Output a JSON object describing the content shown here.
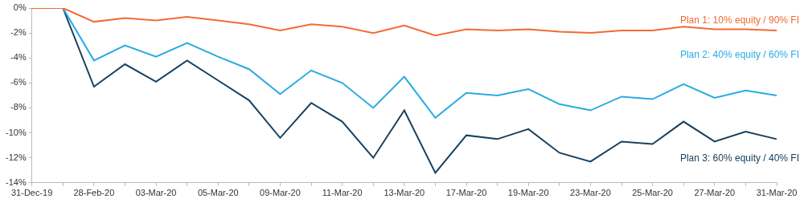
{
  "chart_data": {
    "type": "line",
    "categories": [
      "31-Dec-19",
      null,
      "28-Feb-20",
      null,
      "03-Mar-20",
      null,
      "05-Mar-20",
      null,
      "09-Mar-20",
      null,
      "11-Mar-20",
      null,
      "13-Mar-20",
      null,
      "17-Mar-20",
      null,
      "19-Mar-20",
      null,
      "23-Mar-20",
      null,
      "25-Mar-20",
      null,
      "27-Mar-20",
      null,
      "31-Mar-20"
    ],
    "series": [
      {
        "name": "Plan 1: 10% equity / 90% FI",
        "color": "#f26b35",
        "values": [
          0,
          0,
          -1.1,
          -0.8,
          -1.0,
          -0.7,
          -1.0,
          -1.3,
          -1.8,
          -1.3,
          -1.5,
          -2.0,
          -1.4,
          -2.2,
          -1.7,
          -1.8,
          -1.7,
          -1.9,
          -2.0,
          -1.8,
          -1.8,
          -1.5,
          -1.7,
          -1.7,
          -1.8
        ]
      },
      {
        "name": "Plan 2: 40% equity / 60% FI",
        "color": "#29abe2",
        "values": [
          0,
          0,
          -4.2,
          -3.0,
          -3.9,
          -2.8,
          -3.9,
          -4.9,
          -6.9,
          -5.0,
          -6.0,
          -8.0,
          -5.5,
          -8.8,
          -6.8,
          -7.0,
          -6.5,
          -7.7,
          -8.2,
          -7.1,
          -7.3,
          -6.1,
          -7.2,
          -6.6,
          -7.0
        ]
      },
      {
        "name": "Plan 3: 60% equity / 40% FI",
        "color": "#17415f",
        "values": [
          0,
          0,
          -6.3,
          -4.5,
          -5.9,
          -4.2,
          -5.8,
          -7.4,
          -10.4,
          -7.6,
          -9.1,
          -12.0,
          -8.2,
          -13.2,
          -10.2,
          -10.5,
          -9.7,
          -11.6,
          -12.3,
          -10.7,
          -10.9,
          -9.1,
          -10.7,
          -9.9,
          -10.5
        ]
      }
    ],
    "ylim": [
      -14,
      0
    ],
    "yticks": [
      {
        "value": 0,
        "label": "0%"
      },
      {
        "value": -2,
        "label": "-2%"
      },
      {
        "value": -4,
        "label": "-4%"
      },
      {
        "value": -6,
        "label": "-6%"
      },
      {
        "value": -8,
        "label": "-8%"
      },
      {
        "value": -10,
        "label": "-10%"
      },
      {
        "value": -12,
        "label": "-12%"
      },
      {
        "value": -14,
        "label": "-14%"
      }
    ],
    "grid": false
  }
}
